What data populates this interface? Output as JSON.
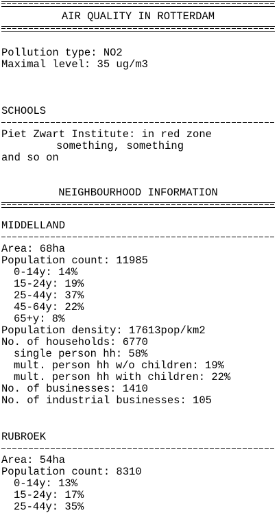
{
  "header": {
    "title": "AIR QUALITY IN ROTTERDAM"
  },
  "pollution": {
    "type_line": "Pollution type: NO2",
    "level_line": "Maximal level: 35 ug/m3"
  },
  "schools": {
    "heading": "SCHOOLS",
    "lines": [
      "Piet Zwart Institute: in red zone",
      "something, something",
      "and so on"
    ]
  },
  "neighbourhood": {
    "heading": "NEIGHBOURHOOD INFORMATION",
    "districts": [
      {
        "name": "MIDDELLAND",
        "area": "Area: 68ha",
        "population": "Population count: 11985",
        "ages": [
          "0-14y: 14%",
          "15-24y: 19%",
          "25-44y: 37%",
          "45-64y: 22%",
          "65+y: 8%"
        ],
        "density": "Population density: 17613pop/km2",
        "households": "No. of households: 6770",
        "household_types": [
          "single person hh: 58%",
          "mult. person hh w/o children: 19%",
          "mult. person hh with children: 22%"
        ],
        "businesses": "No. of businesses: 1410",
        "industrial": "No. of industrial businesses: 105"
      },
      {
        "name": "RUBROEK",
        "area": "Area: 54ha",
        "population": "Population count: 8310",
        "ages": [
          "0-14y: 13%",
          "15-24y: 17%",
          "25-44y: 35%"
        ]
      }
    ]
  }
}
